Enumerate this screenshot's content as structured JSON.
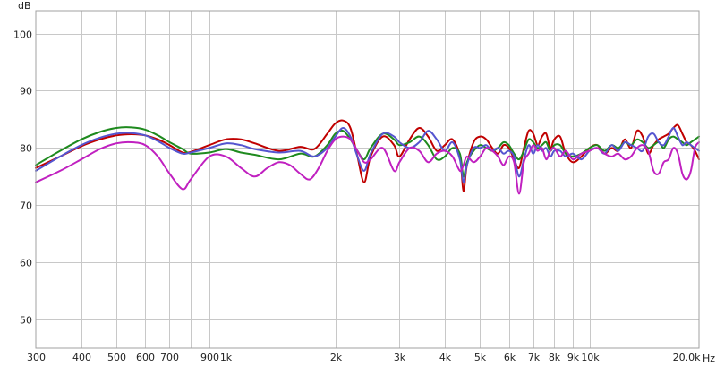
{
  "chart_data": {
    "type": "line",
    "x_scale": "log",
    "grid": true,
    "xlim": [
      300,
      20000
    ],
    "ylim": [
      45,
      104
    ],
    "y_unit": "dB",
    "x_unit": "Hz",
    "y_ticks": [
      {
        "value": 50,
        "label": "50"
      },
      {
        "value": 60,
        "label": "60"
      },
      {
        "value": 70,
        "label": "70"
      },
      {
        "value": 80,
        "label": "80"
      },
      {
        "value": 90,
        "label": "90"
      },
      {
        "value": 100,
        "label": "100"
      }
    ],
    "x_ticks": [
      {
        "value": 300,
        "label": "300"
      },
      {
        "value": 400,
        "label": "400"
      },
      {
        "value": 500,
        "label": "500"
      },
      {
        "value": 600,
        "label": "600"
      },
      {
        "value": 700,
        "label": "700"
      },
      {
        "value": 800,
        "label": ""
      },
      {
        "value": 900,
        "label": "900"
      },
      {
        "value": 1000,
        "label": "1k"
      },
      {
        "value": 2000,
        "label": "2k"
      },
      {
        "value": 3000,
        "label": "3k"
      },
      {
        "value": 4000,
        "label": "4k"
      },
      {
        "value": 5000,
        "label": "5k"
      },
      {
        "value": 6000,
        "label": "6k"
      },
      {
        "value": 7000,
        "label": "7k"
      },
      {
        "value": 8000,
        "label": "8k"
      },
      {
        "value": 9000,
        "label": "9k"
      },
      {
        "value": 10000,
        "label": "10k"
      },
      {
        "value": 20000,
        "label": "20.0k"
      }
    ],
    "series": [
      {
        "color": "#c00000",
        "x": [
          300,
          350,
          400,
          450,
          500,
          550,
          600,
          650,
          700,
          760,
          800,
          900,
          1000,
          1100,
          1200,
          1400,
          1600,
          1750,
          1900,
          2000,
          2100,
          2200,
          2300,
          2400,
          2500,
          2700,
          2900,
          3000,
          3200,
          3400,
          3600,
          3800,
          4000,
          4200,
          4400,
          4500,
          4600,
          4800,
          5000,
          5200,
          5400,
          5600,
          5800,
          6000,
          6200,
          6400,
          6600,
          6800,
          7000,
          7200,
          7400,
          7600,
          7800,
          8000,
          8300,
          8600,
          9000,
          9500,
          10000,
          10500,
          11000,
          11500,
          12000,
          12500,
          13000,
          13500,
          14000,
          14500,
          15000,
          15500,
          16000,
          16500,
          17000,
          17500,
          18000,
          18500,
          19000,
          19500,
          20000
        ],
        "y": [
          76.5,
          78.5,
          80.3,
          81.5,
          82.2,
          82.4,
          82.2,
          81.5,
          80.5,
          79.2,
          79.3,
          80.5,
          81.5,
          81.5,
          80.8,
          79.5,
          80.2,
          79.8,
          82.5,
          84.3,
          84.8,
          83.5,
          78.5,
          74.0,
          78.5,
          82.0,
          80.5,
          78.5,
          81.5,
          83.5,
          82.0,
          79.5,
          80.5,
          81.5,
          78.5,
          72.5,
          77.0,
          81.0,
          82.0,
          81.5,
          80.0,
          79.0,
          80.5,
          80.0,
          78.0,
          76.5,
          80.0,
          83.0,
          82.5,
          80.5,
          82.0,
          82.5,
          80.0,
          81.5,
          82.0,
          79.0,
          77.5,
          78.5,
          80.0,
          80.5,
          79.0,
          80.0,
          79.5,
          81.5,
          80.0,
          83.0,
          82.0,
          79.0,
          80.5,
          81.5,
          82.0,
          82.5,
          83.5,
          84.0,
          82.5,
          81.0,
          80.5,
          79.5,
          78.0
        ]
      },
      {
        "color": "#1e8a1e",
        "x": [
          300,
          350,
          400,
          450,
          500,
          550,
          600,
          650,
          700,
          760,
          800,
          900,
          1000,
          1100,
          1200,
          1400,
          1600,
          1750,
          1900,
          2000,
          2100,
          2200,
          2300,
          2400,
          2500,
          2700,
          2900,
          3000,
          3200,
          3400,
          3600,
          3800,
          4000,
          4200,
          4400,
          4500,
          4600,
          4800,
          5000,
          5200,
          5400,
          5600,
          5800,
          6000,
          6200,
          6400,
          6600,
          6800,
          7000,
          7200,
          7400,
          7600,
          7800,
          8000,
          8300,
          8600,
          9000,
          9500,
          10000,
          10500,
          11000,
          11500,
          12000,
          12500,
          13000,
          13500,
          14000,
          14500,
          15000,
          15500,
          16000,
          16500,
          17000,
          17500,
          18000,
          18500,
          19000,
          19500,
          20000
        ],
        "y": [
          77.0,
          79.5,
          81.5,
          82.8,
          83.5,
          83.6,
          83.2,
          82.2,
          81.0,
          79.8,
          79.0,
          79.2,
          79.8,
          79.2,
          78.8,
          78.0,
          79.0,
          78.5,
          80.5,
          82.5,
          83.0,
          81.5,
          79.5,
          78.0,
          80.0,
          82.5,
          81.5,
          80.5,
          81.0,
          82.0,
          80.5,
          78.0,
          78.5,
          80.0,
          79.0,
          75.0,
          77.5,
          79.5,
          80.5,
          80.0,
          79.5,
          80.0,
          81.0,
          80.5,
          79.0,
          78.0,
          79.5,
          81.5,
          81.0,
          80.0,
          80.5,
          81.0,
          79.5,
          80.5,
          80.5,
          79.0,
          78.5,
          79.0,
          80.0,
          80.5,
          79.5,
          80.5,
          80.0,
          81.0,
          80.5,
          81.5,
          81.0,
          80.0,
          80.5,
          81.0,
          80.0,
          81.5,
          82.0,
          81.5,
          81.0,
          80.5,
          81.0,
          81.5,
          82.0
        ]
      },
      {
        "color": "#5555d0",
        "x": [
          300,
          350,
          400,
          450,
          500,
          550,
          600,
          650,
          700,
          760,
          800,
          900,
          1000,
          1100,
          1200,
          1400,
          1600,
          1750,
          1900,
          2000,
          2100,
          2200,
          2300,
          2400,
          2500,
          2700,
          2900,
          3000,
          3200,
          3400,
          3600,
          3800,
          4000,
          4200,
          4400,
          4500,
          4600,
          4800,
          5000,
          5200,
          5400,
          5600,
          5800,
          6000,
          6200,
          6400,
          6600,
          6800,
          7000,
          7200,
          7400,
          7600,
          7800,
          8000,
          8300,
          8600,
          9000,
          9500,
          10000,
          10500,
          11000,
          11500,
          12000,
          12500,
          13000,
          13500,
          14000,
          14500,
          15000,
          15500,
          16000,
          16500,
          17000,
          17500,
          18000,
          18500,
          19000,
          19500,
          20000
        ],
        "y": [
          76.0,
          78.5,
          80.5,
          81.8,
          82.5,
          82.6,
          82.2,
          81.2,
          80.0,
          79.0,
          79.2,
          80.0,
          80.8,
          80.5,
          79.8,
          79.2,
          79.5,
          78.5,
          80.0,
          82.0,
          83.5,
          82.0,
          78.5,
          76.0,
          79.0,
          82.5,
          82.0,
          81.0,
          80.0,
          81.0,
          83.0,
          81.5,
          79.5,
          81.0,
          78.0,
          74.0,
          77.0,
          80.0,
          80.0,
          80.5,
          79.5,
          80.0,
          79.0,
          79.5,
          78.5,
          75.0,
          78.0,
          80.5,
          79.0,
          80.5,
          79.5,
          80.0,
          78.5,
          79.5,
          79.5,
          78.5,
          79.0,
          78.0,
          79.5,
          80.0,
          79.0,
          80.5,
          79.5,
          81.0,
          80.5,
          80.0,
          79.5,
          82.0,
          82.5,
          81.0,
          80.5,
          82.0,
          83.5,
          82.0,
          80.5,
          81.0,
          80.5,
          80.0,
          79.5
        ]
      },
      {
        "color": "#c020c0",
        "x": [
          300,
          350,
          400,
          450,
          500,
          550,
          600,
          650,
          700,
          760,
          800,
          900,
          1000,
          1100,
          1200,
          1300,
          1400,
          1500,
          1600,
          1700,
          1800,
          1900,
          2000,
          2100,
          2200,
          2300,
          2400,
          2500,
          2700,
          2900,
          3000,
          3200,
          3400,
          3600,
          3800,
          4000,
          4200,
          4400,
          4500,
          4600,
          4800,
          5000,
          5200,
          5400,
          5600,
          5800,
          6000,
          6200,
          6400,
          6600,
          6800,
          7000,
          7200,
          7400,
          7600,
          7800,
          8000,
          8300,
          8600,
          9000,
          9500,
          10000,
          10500,
          11000,
          11500,
          12000,
          12500,
          13000,
          13500,
          14000,
          14500,
          15000,
          15500,
          16000,
          16500,
          17000,
          17500,
          18000,
          18500,
          19000,
          19500,
          20000
        ],
        "y": [
          74.0,
          76.0,
          78.0,
          79.8,
          80.8,
          81.0,
          80.5,
          78.5,
          75.5,
          72.8,
          74.5,
          78.5,
          78.5,
          76.5,
          75.0,
          76.5,
          77.5,
          77.0,
          75.5,
          74.5,
          76.5,
          79.5,
          81.5,
          82.0,
          81.5,
          79.5,
          77.5,
          78.0,
          80.0,
          76.0,
          77.5,
          80.0,
          79.5,
          77.5,
          79.0,
          79.5,
          78.5,
          76.0,
          77.0,
          78.5,
          77.5,
          78.5,
          80.0,
          79.5,
          78.5,
          77.0,
          78.5,
          77.5,
          72.0,
          77.5,
          79.0,
          80.5,
          79.5,
          80.0,
          78.0,
          79.5,
          80.0,
          78.5,
          79.5,
          78.0,
          79.0,
          79.5,
          80.0,
          79.0,
          78.5,
          79.0,
          78.0,
          78.5,
          80.0,
          80.5,
          79.5,
          76.0,
          75.5,
          77.5,
          78.0,
          80.0,
          79.0,
          75.5,
          74.5,
          76.0,
          80.0,
          81.0
        ]
      }
    ]
  }
}
